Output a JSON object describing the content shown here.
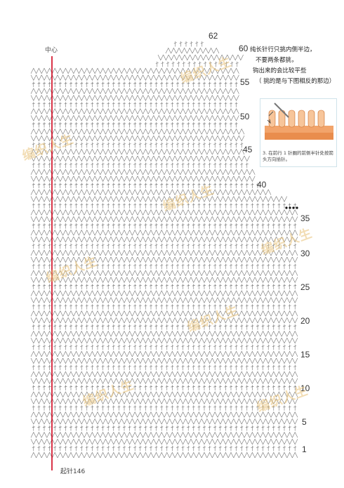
{
  "diagram": {
    "center_label": "中心",
    "start_label": "起针146",
    "row_numbers_right": [
      "1",
      "5",
      "10",
      "15",
      "20",
      "25",
      "30",
      "35"
    ],
    "shaping_numbers": [
      "40",
      "45",
      "50",
      "55",
      "60",
      "62"
    ],
    "note_lines": [
      "纯长针行只挑内侧半边，",
      "不要两条都挑，",
      "钩出来的会比较平些",
      "（ 挑的是与下图相反的那边）"
    ],
    "illustration_caption": "3. 在前行 1 针圈的前侧半针处按箭头方向插针。",
    "watermark_text": "编织人生",
    "colors": {
      "center_line": "#d0021b",
      "watermark": "#e8c37a",
      "stitch": "#666666"
    }
  }
}
